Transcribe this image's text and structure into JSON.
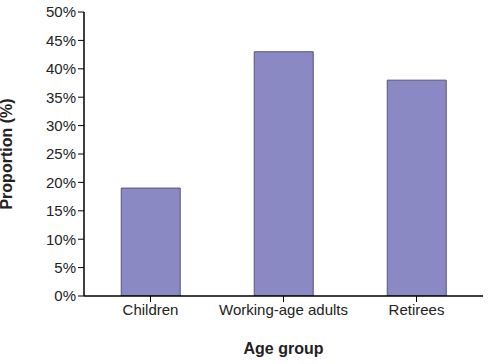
{
  "chart_data": {
    "type": "bar",
    "categories": [
      "Children",
      "Working-age adults",
      "Retirees"
    ],
    "values": [
      19,
      43,
      38
    ],
    "color": "#8b89c4",
    "xlabel": "Age group",
    "ylabel": "Proportion (%)",
    "ylim": [
      0,
      50
    ],
    "yticks": [
      {
        "value": 0,
        "label": "0%"
      },
      {
        "value": 5,
        "label": "5%"
      },
      {
        "value": 10,
        "label": "10%"
      },
      {
        "value": 15,
        "label": "15%"
      },
      {
        "value": 20,
        "label": "20%"
      },
      {
        "value": 25,
        "label": "25%"
      },
      {
        "value": 30,
        "label": "30%"
      },
      {
        "value": 35,
        "label": "35%"
      },
      {
        "value": 40,
        "label": "40%"
      },
      {
        "value": 45,
        "label": "45%"
      },
      {
        "value": 50,
        "label": "50%"
      }
    ],
    "grid": false
  }
}
